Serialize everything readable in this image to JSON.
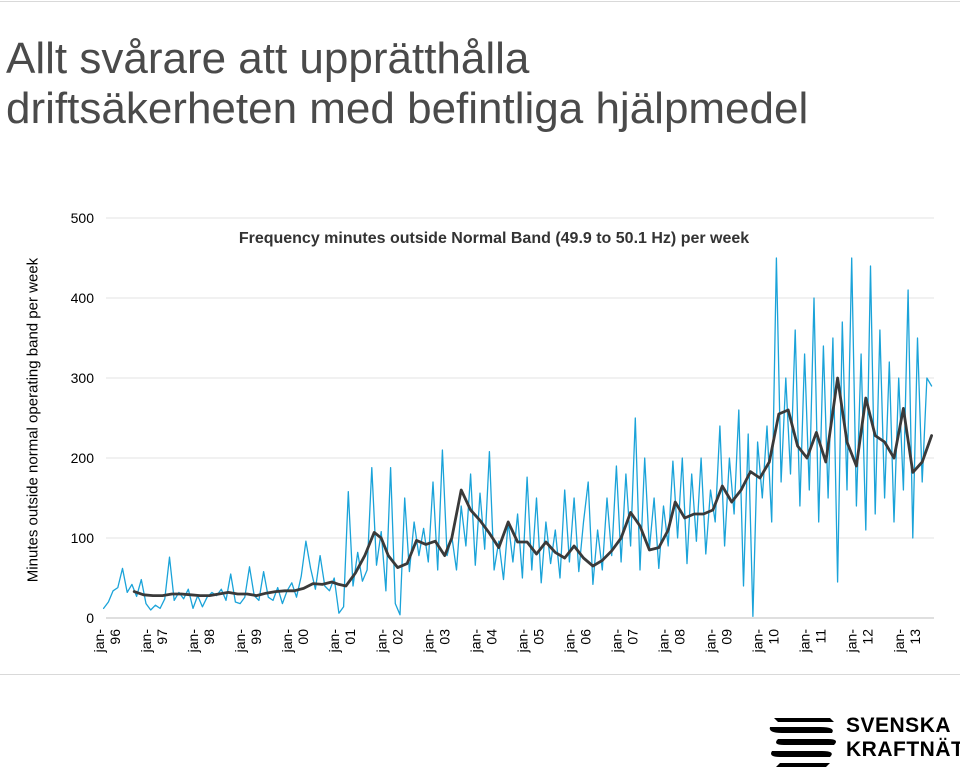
{
  "page": {
    "title_lines": [
      "Allt svårare att upprätthålla",
      "driftsäkerheten med befintliga hjälpmedel"
    ],
    "logo_lines": [
      "SVENSKA",
      "KRAFTNÄT"
    ]
  },
  "chart_data": {
    "type": "line",
    "title": "Frequency minutes outside Normal Band (49.9 to 50.1 Hz) per week",
    "xlabel": "",
    "ylabel": "Minutes outside normal operating band per week",
    "ylim": [
      0,
      500
    ],
    "yticks": [
      0,
      100,
      200,
      300,
      400,
      500
    ],
    "x_range": [
      1996.0,
      2013.6
    ],
    "xticks": [
      {
        "year": 1996,
        "label": "jan-\n96"
      },
      {
        "year": 1997,
        "label": "jan-\n97"
      },
      {
        "year": 1998,
        "label": "jan-\n98"
      },
      {
        "year": 1999,
        "label": "jan-\n99"
      },
      {
        "year": 2000,
        "label": "jan-\n00"
      },
      {
        "year": 2001,
        "label": "jan-\n01"
      },
      {
        "year": 2002,
        "label": "jan-\n02"
      },
      {
        "year": 2003,
        "label": "jan-\n03"
      },
      {
        "year": 2004,
        "label": "jan-\n04"
      },
      {
        "year": 2005,
        "label": "jan-\n05"
      },
      {
        "year": 2006,
        "label": "jan-\n06"
      },
      {
        "year": 2007,
        "label": "jan-\n07"
      },
      {
        "year": 2008,
        "label": "jan-\n08"
      },
      {
        "year": 2009,
        "label": "jan-\n09"
      },
      {
        "year": 2010,
        "label": "jan-\n10"
      },
      {
        "year": 2011,
        "label": "jan-\n11"
      },
      {
        "year": 2012,
        "label": "jan-\n12"
      },
      {
        "year": 2013,
        "label": "jan-\n13"
      }
    ],
    "grid": "horizontal",
    "series": [
      {
        "role": "weekly",
        "color": "#1aa3d9",
        "points": [
          [
            1995.95,
            12
          ],
          [
            1996.05,
            20
          ],
          [
            1996.15,
            34
          ],
          [
            1996.25,
            38
          ],
          [
            1996.35,
            62
          ],
          [
            1996.45,
            32
          ],
          [
            1996.55,
            42
          ],
          [
            1996.65,
            27
          ],
          [
            1996.75,
            48
          ],
          [
            1996.85,
            18
          ],
          [
            1996.95,
            10
          ],
          [
            1997.05,
            16
          ],
          [
            1997.15,
            12
          ],
          [
            1997.25,
            24
          ],
          [
            1997.35,
            76
          ],
          [
            1997.45,
            22
          ],
          [
            1997.55,
            32
          ],
          [
            1997.65,
            24
          ],
          [
            1997.75,
            36
          ],
          [
            1997.85,
            12
          ],
          [
            1997.95,
            28
          ],
          [
            1998.05,
            14
          ],
          [
            1998.15,
            26
          ],
          [
            1998.25,
            32
          ],
          [
            1998.35,
            28
          ],
          [
            1998.45,
            36
          ],
          [
            1998.55,
            22
          ],
          [
            1998.65,
            55
          ],
          [
            1998.75,
            20
          ],
          [
            1998.85,
            18
          ],
          [
            1998.95,
            26
          ],
          [
            1999.05,
            64
          ],
          [
            1999.15,
            28
          ],
          [
            1999.25,
            22
          ],
          [
            1999.35,
            58
          ],
          [
            1999.45,
            26
          ],
          [
            1999.55,
            22
          ],
          [
            1999.65,
            38
          ],
          [
            1999.75,
            18
          ],
          [
            1999.85,
            34
          ],
          [
            1999.95,
            44
          ],
          [
            2000.05,
            26
          ],
          [
            2000.15,
            52
          ],
          [
            2000.25,
            96
          ],
          [
            2000.35,
            62
          ],
          [
            2000.45,
            36
          ],
          [
            2000.55,
            78
          ],
          [
            2000.65,
            40
          ],
          [
            2000.75,
            34
          ],
          [
            2000.85,
            50
          ],
          [
            2000.95,
            6
          ],
          [
            2001.05,
            14
          ],
          [
            2001.15,
            158
          ],
          [
            2001.25,
            40
          ],
          [
            2001.35,
            82
          ],
          [
            2001.45,
            46
          ],
          [
            2001.55,
            60
          ],
          [
            2001.65,
            188
          ],
          [
            2001.75,
            66
          ],
          [
            2001.85,
            108
          ],
          [
            2001.95,
            34
          ],
          [
            2002.05,
            188
          ],
          [
            2002.15,
            18
          ],
          [
            2002.25,
            4
          ],
          [
            2002.35,
            150
          ],
          [
            2002.45,
            58
          ],
          [
            2002.55,
            120
          ],
          [
            2002.65,
            78
          ],
          [
            2002.75,
            112
          ],
          [
            2002.85,
            70
          ],
          [
            2002.95,
            170
          ],
          [
            2003.05,
            60
          ],
          [
            2003.15,
            210
          ],
          [
            2003.25,
            78
          ],
          [
            2003.35,
            102
          ],
          [
            2003.45,
            60
          ],
          [
            2003.55,
            140
          ],
          [
            2003.65,
            90
          ],
          [
            2003.75,
            180
          ],
          [
            2003.85,
            66
          ],
          [
            2003.95,
            156
          ],
          [
            2004.05,
            86
          ],
          [
            2004.15,
            208
          ],
          [
            2004.25,
            60
          ],
          [
            2004.35,
            96
          ],
          [
            2004.45,
            48
          ],
          [
            2004.55,
            120
          ],
          [
            2004.65,
            70
          ],
          [
            2004.75,
            130
          ],
          [
            2004.85,
            50
          ],
          [
            2004.95,
            176
          ],
          [
            2005.05,
            60
          ],
          [
            2005.15,
            150
          ],
          [
            2005.25,
            44
          ],
          [
            2005.35,
            120
          ],
          [
            2005.45,
            68
          ],
          [
            2005.55,
            110
          ],
          [
            2005.65,
            50
          ],
          [
            2005.75,
            160
          ],
          [
            2005.85,
            70
          ],
          [
            2005.95,
            150
          ],
          [
            2006.05,
            58
          ],
          [
            2006.15,
            120
          ],
          [
            2006.25,
            170
          ],
          [
            2006.35,
            42
          ],
          [
            2006.45,
            110
          ],
          [
            2006.55,
            60
          ],
          [
            2006.65,
            150
          ],
          [
            2006.75,
            78
          ],
          [
            2006.85,
            190
          ],
          [
            2006.95,
            70
          ],
          [
            2007.05,
            180
          ],
          [
            2007.15,
            90
          ],
          [
            2007.25,
            250
          ],
          [
            2007.35,
            60
          ],
          [
            2007.45,
            200
          ],
          [
            2007.55,
            86
          ],
          [
            2007.65,
            150
          ],
          [
            2007.75,
            62
          ],
          [
            2007.85,
            140
          ],
          [
            2007.95,
            90
          ],
          [
            2008.05,
            196
          ],
          [
            2008.15,
            100
          ],
          [
            2008.25,
            200
          ],
          [
            2008.35,
            68
          ],
          [
            2008.45,
            180
          ],
          [
            2008.55,
            96
          ],
          [
            2008.65,
            200
          ],
          [
            2008.75,
            80
          ],
          [
            2008.85,
            160
          ],
          [
            2008.95,
            120
          ],
          [
            2009.05,
            240
          ],
          [
            2009.15,
            90
          ],
          [
            2009.25,
            200
          ],
          [
            2009.35,
            130
          ],
          [
            2009.45,
            260
          ],
          [
            2009.55,
            40
          ],
          [
            2009.65,
            230
          ],
          [
            2009.75,
            2
          ],
          [
            2009.85,
            220
          ],
          [
            2009.95,
            150
          ],
          [
            2010.05,
            240
          ],
          [
            2010.15,
            120
          ],
          [
            2010.25,
            450
          ],
          [
            2010.35,
            170
          ],
          [
            2010.45,
            300
          ],
          [
            2010.55,
            180
          ],
          [
            2010.65,
            360
          ],
          [
            2010.75,
            140
          ],
          [
            2010.85,
            330
          ],
          [
            2010.95,
            160
          ],
          [
            2011.05,
            400
          ],
          [
            2011.15,
            120
          ],
          [
            2011.25,
            340
          ],
          [
            2011.35,
            150
          ],
          [
            2011.45,
            350
          ],
          [
            2011.55,
            45
          ],
          [
            2011.65,
            370
          ],
          [
            2011.75,
            160
          ],
          [
            2011.85,
            450
          ],
          [
            2011.95,
            140
          ],
          [
            2012.05,
            330
          ],
          [
            2012.15,
            110
          ],
          [
            2012.25,
            440
          ],
          [
            2012.35,
            130
          ],
          [
            2012.45,
            360
          ],
          [
            2012.55,
            150
          ],
          [
            2012.65,
            320
          ],
          [
            2012.75,
            120
          ],
          [
            2012.85,
            300
          ],
          [
            2012.95,
            160
          ],
          [
            2013.05,
            410
          ],
          [
            2013.15,
            100
          ],
          [
            2013.25,
            350
          ],
          [
            2013.35,
            170
          ],
          [
            2013.45,
            300
          ],
          [
            2013.55,
            290
          ]
        ]
      },
      {
        "role": "moving-average",
        "color": "#3a3a3a",
        "points": [
          [
            1996.6,
            33
          ],
          [
            1996.8,
            29
          ],
          [
            1997.0,
            28
          ],
          [
            1997.2,
            28
          ],
          [
            1997.4,
            30
          ],
          [
            1997.6,
            30
          ],
          [
            1997.8,
            29
          ],
          [
            1998.0,
            28
          ],
          [
            1998.2,
            28
          ],
          [
            1998.4,
            30
          ],
          [
            1998.6,
            32
          ],
          [
            1998.8,
            30
          ],
          [
            1999.0,
            30
          ],
          [
            1999.2,
            28
          ],
          [
            1999.4,
            31
          ],
          [
            1999.6,
            33
          ],
          [
            1999.8,
            34
          ],
          [
            2000.0,
            34
          ],
          [
            2000.2,
            37
          ],
          [
            2000.4,
            43
          ],
          [
            2000.6,
            42
          ],
          [
            2000.8,
            45
          ],
          [
            2000.95,
            42
          ],
          [
            2001.1,
            40
          ],
          [
            2001.3,
            56
          ],
          [
            2001.5,
            78
          ],
          [
            2001.7,
            107
          ],
          [
            2001.85,
            100
          ],
          [
            2002.0,
            78
          ],
          [
            2002.2,
            63
          ],
          [
            2002.4,
            68
          ],
          [
            2002.6,
            97
          ],
          [
            2002.8,
            92
          ],
          [
            2003.0,
            96
          ],
          [
            2003.2,
            78
          ],
          [
            2003.35,
            100
          ],
          [
            2003.55,
            160
          ],
          [
            2003.75,
            135
          ],
          [
            2003.95,
            122
          ],
          [
            2004.15,
            106
          ],
          [
            2004.35,
            88
          ],
          [
            2004.55,
            120
          ],
          [
            2004.75,
            95
          ],
          [
            2004.95,
            95
          ],
          [
            2005.15,
            80
          ],
          [
            2005.35,
            95
          ],
          [
            2005.55,
            82
          ],
          [
            2005.75,
            75
          ],
          [
            2005.95,
            90
          ],
          [
            2006.15,
            75
          ],
          [
            2006.35,
            65
          ],
          [
            2006.55,
            72
          ],
          [
            2006.75,
            84
          ],
          [
            2006.95,
            100
          ],
          [
            2007.15,
            132
          ],
          [
            2007.35,
            115
          ],
          [
            2007.55,
            85
          ],
          [
            2007.75,
            88
          ],
          [
            2007.95,
            110
          ],
          [
            2008.1,
            145
          ],
          [
            2008.3,
            125
          ],
          [
            2008.5,
            130
          ],
          [
            2008.7,
            130
          ],
          [
            2008.9,
            135
          ],
          [
            2009.1,
            165
          ],
          [
            2009.3,
            145
          ],
          [
            2009.5,
            160
          ],
          [
            2009.7,
            183
          ],
          [
            2009.9,
            175
          ],
          [
            2010.1,
            195
          ],
          [
            2010.3,
            255
          ],
          [
            2010.5,
            260
          ],
          [
            2010.7,
            215
          ],
          [
            2010.9,
            200
          ],
          [
            2011.1,
            232
          ],
          [
            2011.3,
            195
          ],
          [
            2011.55,
            300
          ],
          [
            2011.75,
            220
          ],
          [
            2011.95,
            190
          ],
          [
            2012.15,
            275
          ],
          [
            2012.35,
            228
          ],
          [
            2012.55,
            220
          ],
          [
            2012.75,
            200
          ],
          [
            2012.95,
            262
          ],
          [
            2013.15,
            182
          ],
          [
            2013.35,
            195
          ],
          [
            2013.55,
            228
          ]
        ]
      }
    ]
  }
}
